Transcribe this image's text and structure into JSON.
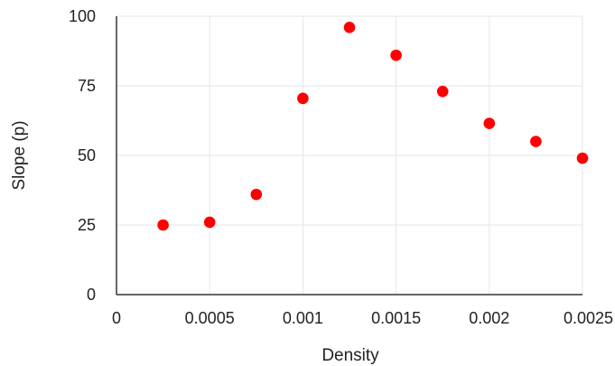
{
  "chart_data": {
    "type": "scatter",
    "title": "",
    "xlabel": "Density",
    "ylabel": "Slope (p)",
    "xlim": [
      0,
      0.0025
    ],
    "ylim": [
      0,
      100
    ],
    "x_ticks": [
      0,
      0.0005,
      0.001,
      0.0015,
      0.002,
      0.0025
    ],
    "x_tick_labels": [
      "0",
      "0.0005",
      "0.001",
      "0.0015",
      "0.002",
      "0.0025"
    ],
    "y_ticks": [
      0,
      25,
      50,
      75,
      100
    ],
    "y_tick_labels": [
      "0",
      "25",
      "50",
      "75",
      "100"
    ],
    "grid": true,
    "legend": "none",
    "marker_color": "#ff0000",
    "grid_color": "#e6e6e6",
    "axis_color": "#333333",
    "series": [
      {
        "x": [
          0.00025,
          0.0005,
          0.00075,
          0.001,
          0.00125,
          0.0015,
          0.00175,
          0.002,
          0.00225,
          0.0025
        ],
        "y": [
          25,
          26,
          36,
          70.5,
          96,
          86,
          73,
          61.5,
          55,
          49
        ]
      }
    ]
  }
}
